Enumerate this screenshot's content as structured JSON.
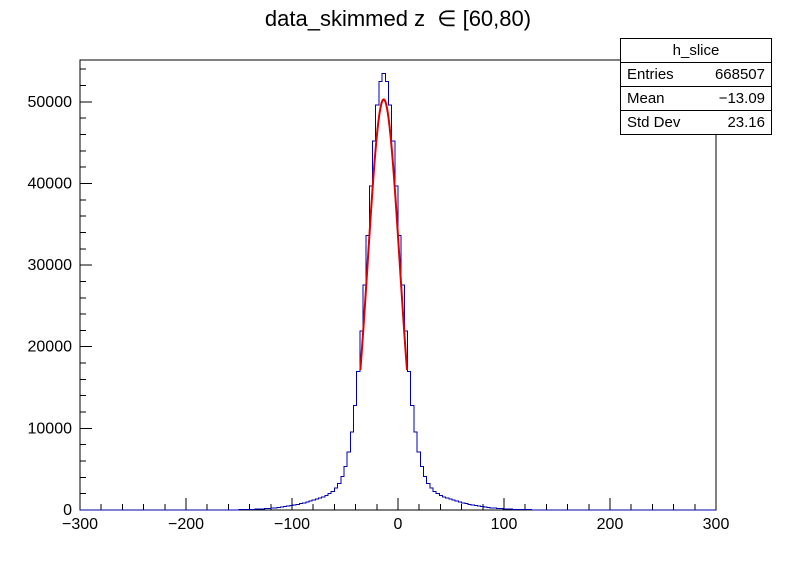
{
  "chart_data": {
    "type": "bar",
    "subtype": "histogram-step",
    "title": "data_skimmed z  ∈ [60,80)",
    "xlabel": "",
    "ylabel": "",
    "xlim": [
      -300,
      300
    ],
    "ylim": [
      0,
      55125
    ],
    "grid": false,
    "x_major_ticks": [
      -300,
      -200,
      -100,
      0,
      100,
      200,
      300
    ],
    "x_minor_step": 20,
    "y_major_ticks": [
      0,
      10000,
      20000,
      30000,
      40000,
      50000
    ],
    "y_minor_step": 2000,
    "histogram": {
      "name": "h_slice",
      "color": "#0000b3",
      "bin_start": -150,
      "bin_width": 3,
      "counts": [
        39,
        47,
        57,
        69,
        84,
        100,
        119,
        141,
        167,
        196,
        230,
        268,
        311,
        359,
        413,
        474,
        540,
        613,
        693,
        779,
        873,
        973,
        1081,
        1197,
        1321,
        1456,
        1605,
        1781,
        1995,
        2281,
        2678,
        3257,
        4106,
        5345,
        7119,
        9570,
        12820,
        16938,
        21905,
        27570,
        33638,
        39683,
        45195,
        49625,
        52502,
        53500,
        52502,
        49625,
        45195,
        39683,
        33638,
        27570,
        21905,
        16938,
        12820,
        9570,
        7119,
        5345,
        4106,
        3257,
        2678,
        2281,
        1995,
        1781,
        1605,
        1456,
        1321,
        1197,
        1081,
        973,
        873,
        779,
        693,
        613,
        540,
        474,
        413,
        359,
        311,
        268,
        230,
        196,
        167,
        141,
        119,
        100,
        84,
        69,
        57,
        47,
        39,
        32,
        26,
        21,
        17,
        14,
        11,
        9,
        7,
        5
      ]
    },
    "fit": {
      "type": "gaussian",
      "color": "#dd0000",
      "amplitude": 50300,
      "mean": -13.5,
      "sigma": 15,
      "x_range": [
        -35.5,
        8.5
      ]
    }
  },
  "stats": {
    "title": "h_slice",
    "rows": [
      {
        "label": "Entries",
        "value": "668507"
      },
      {
        "label": "Mean",
        "value": "−13.09"
      },
      {
        "label": "Std Dev",
        "value": "23.16"
      }
    ]
  }
}
